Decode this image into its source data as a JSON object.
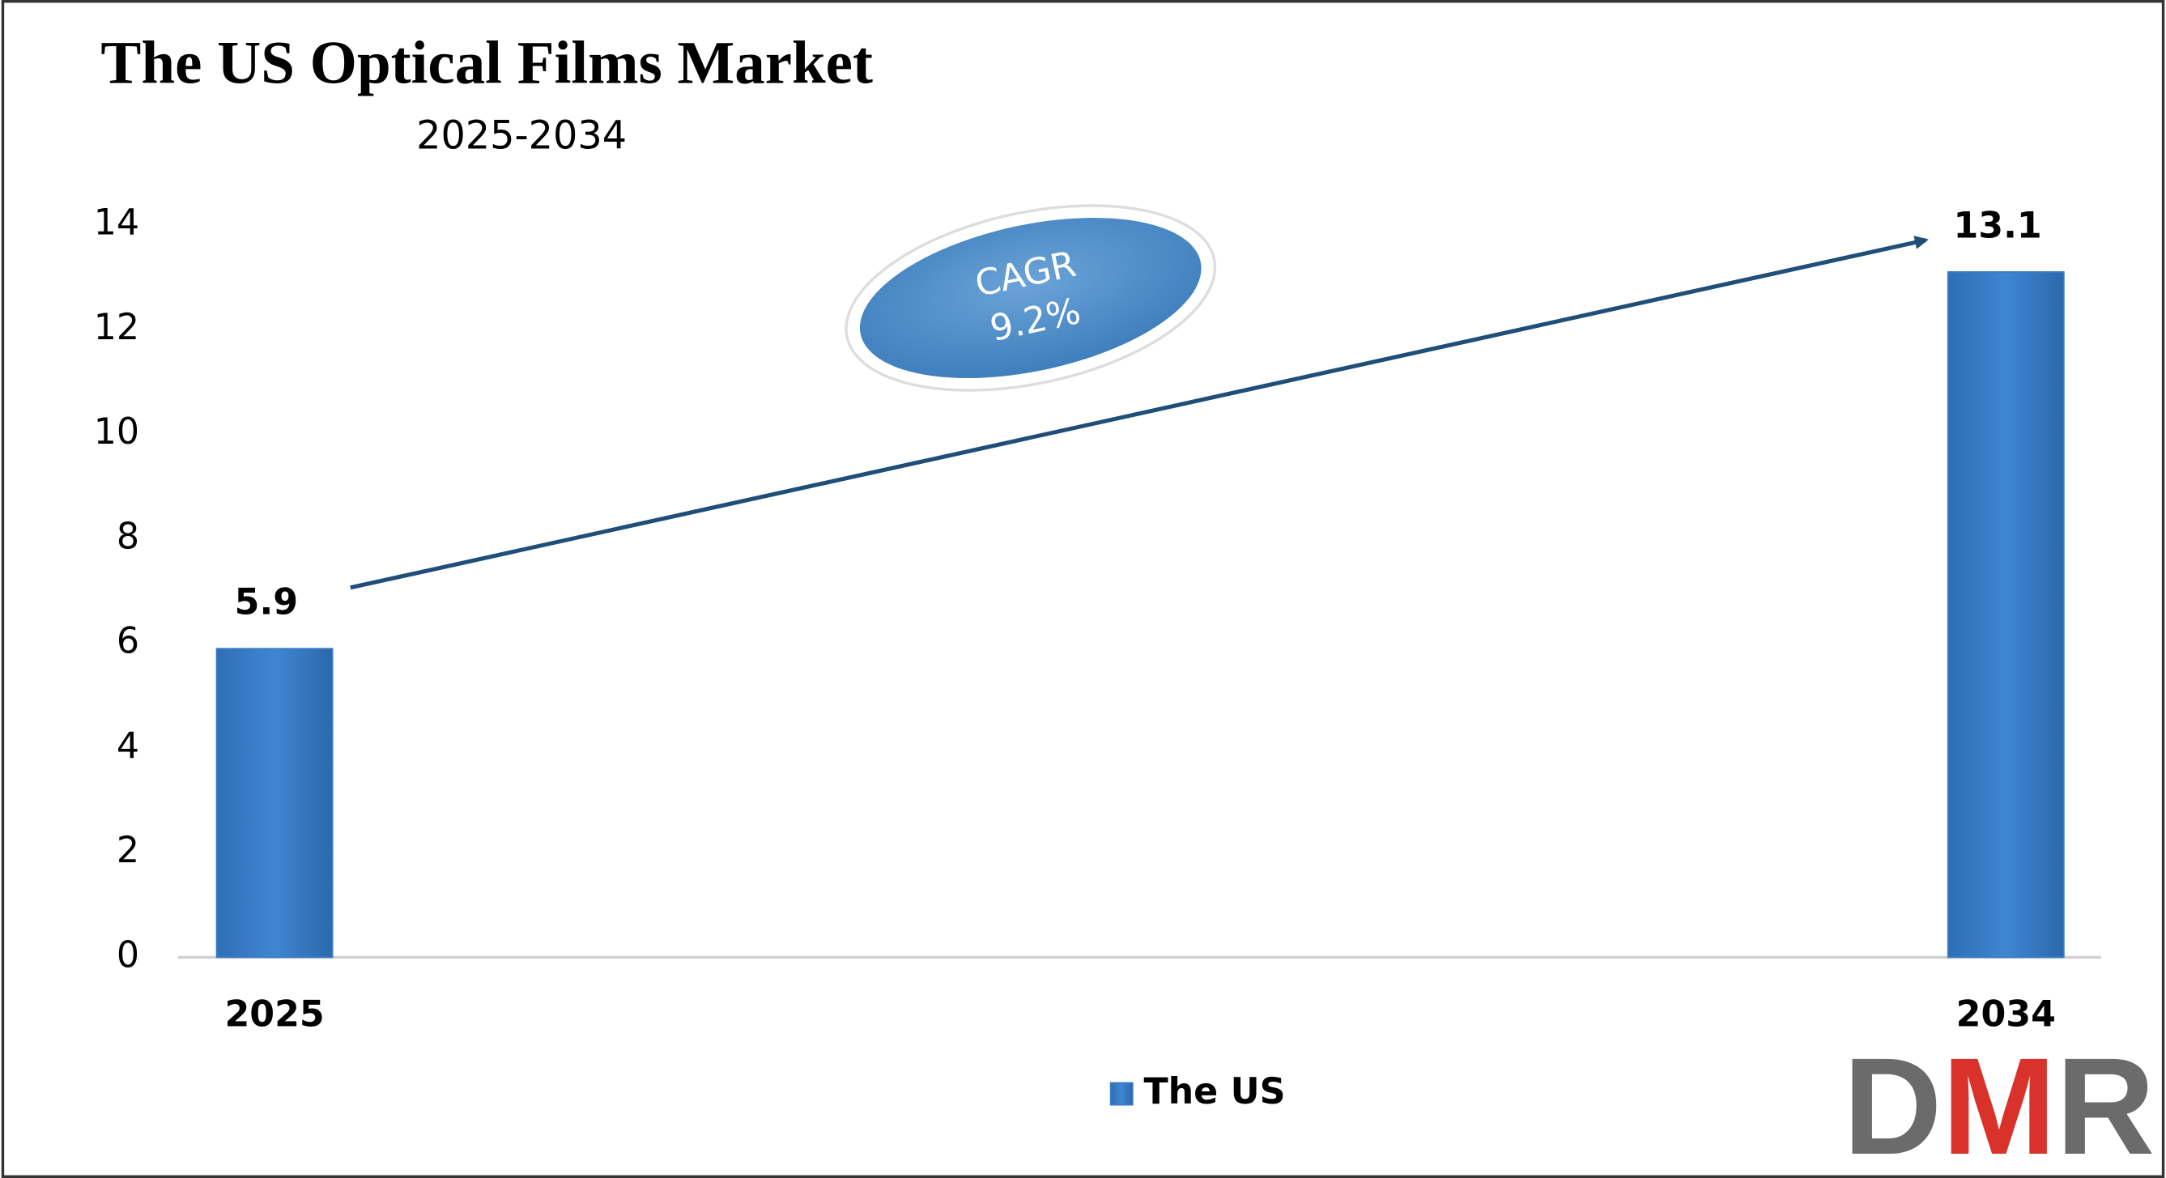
{
  "chart_data": {
    "type": "bar",
    "title": "The US Optical Films Market",
    "subtitle": "2025-2034",
    "categories": [
      "2025",
      "2034"
    ],
    "series": [
      {
        "name": "The US",
        "color": "#3a7dc6",
        "values": [
          5.9,
          13.1
        ]
      }
    ],
    "ylim": [
      0,
      14
    ],
    "yticks": [
      0,
      2,
      4,
      6,
      8,
      10,
      12,
      14
    ],
    "grid": false,
    "legend": "bottom",
    "annotation": {
      "label": "CAGR",
      "value": "9.2%"
    },
    "logo": "DMR"
  }
}
